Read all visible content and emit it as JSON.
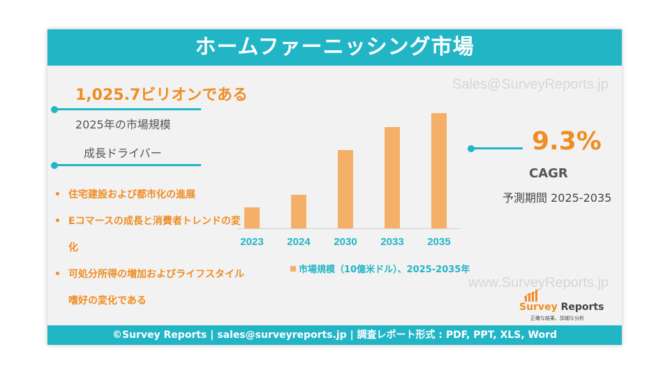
{
  "header": {
    "title": "ホームファーニッシング市場"
  },
  "watermark": {
    "top": "Sales@SurveyReports.jp",
    "bottom": "www.SurveyReports.jp"
  },
  "market": {
    "value": "1,025.7ビリオンである",
    "value_caption": "2025年の市場規模"
  },
  "drivers": {
    "heading": "成長ドライバー",
    "items": [
      "住宅建設および都市化の進展",
      "Eコマースの成長と消費者トレンドの変化",
      "可処分所得の増加およびライフスタイル嗜好の変化である"
    ]
  },
  "cagr": {
    "value": "9.3%",
    "label": "CAGR",
    "period": "予測期間 2025-2035"
  },
  "logo": {
    "name_part1": "Survey",
    "name_part2": "Reports",
    "tagline": "正確な結果、詳細な分析"
  },
  "footer": {
    "text": "©Survey Reports | sales@surveyreports.jp |  調査レポート形式 : PDF, PPT, XLS, Word"
  },
  "colors": {
    "teal": "#22b5c6",
    "orange": "#ef8d22",
    "bar": "#f5b068"
  },
  "chart_data": {
    "type": "bar",
    "categories": [
      "2023",
      "2024",
      "2030",
      "2033",
      "2035"
    ],
    "values": [
      30,
      48,
      112,
      145,
      165
    ],
    "ylim": [
      0,
      170
    ],
    "legend": "市場規模（10億米ドル）、2025-2035年",
    "legend_position": "bottom",
    "grid": false
  }
}
